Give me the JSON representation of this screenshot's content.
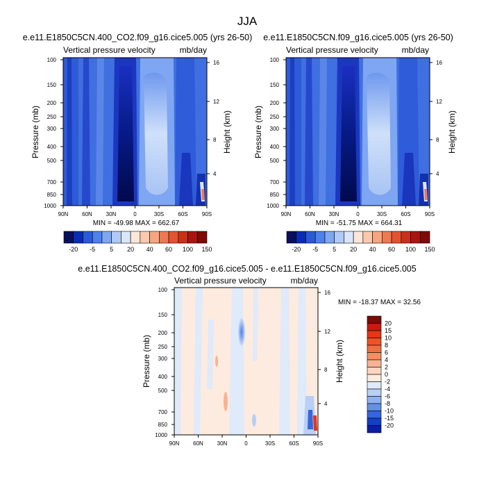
{
  "figure": {
    "title": "JJA"
  },
  "chart_data": [
    {
      "type": "heatmap",
      "title": "e.e11.E1850C5CN.400_CO2.f09_g16.cice5.005 (yrs 26-50)",
      "left_label": "Vertical pressure velocity",
      "right_label": "mb/day",
      "ylabel": "Pressure (mb)",
      "y2label": "Height (km)",
      "xticks": [
        "90N",
        "60N",
        "30N",
        "0",
        "30S",
        "60S",
        "90S"
      ],
      "yticks": [
        "100",
        "150",
        "200",
        "250",
        "300",
        "400",
        "500",
        "700",
        "850",
        "1000"
      ],
      "y2ticks": [
        "16",
        "12",
        "8",
        "4"
      ],
      "stats": "MIN = -49.98   MAX = 662.67",
      "min": -49.98,
      "max": 662.67
    },
    {
      "type": "heatmap",
      "title": "e.e11.E1850C5CN.f09_g16.cice5.005 (yrs 26-50)",
      "left_label": "Vertical pressure velocity",
      "right_label": "mb/day",
      "ylabel": "Pressure (mb)",
      "y2label": "Height (km)",
      "xticks": [
        "90N",
        "60N",
        "30N",
        "0",
        "30S",
        "60S",
        "90S"
      ],
      "yticks": [
        "100",
        "150",
        "200",
        "250",
        "300",
        "400",
        "500",
        "700",
        "850",
        "1000"
      ],
      "y2ticks": [
        "16",
        "12",
        "8",
        "4"
      ],
      "stats": "MIN = -51.75   MAX = 664.31",
      "min": -51.75,
      "max": 664.31
    },
    {
      "type": "heatmap",
      "title": "e.e11.E1850C5CN.400_CO2.f09_g16.cice5.005 - e.e11.E1850C5CN.f09_g16.cice5.005",
      "left_label": "Vertical pressure velocity",
      "right_label": "mb/day",
      "ylabel": "Pressure (mb)",
      "y2label": "Height (km)",
      "xticks": [
        "90N",
        "60N",
        "30N",
        "0",
        "30S",
        "60S",
        "90S"
      ],
      "yticks": [
        "100",
        "150",
        "200",
        "250",
        "300",
        "400",
        "500",
        "700",
        "850",
        "1000"
      ],
      "y2ticks": [
        "16",
        "12",
        "8",
        "4"
      ],
      "stats": "MIN = -18.37   MAX =  32.56",
      "min": -18.37,
      "max": 32.56
    }
  ],
  "colorbar_top": {
    "labels": [
      "-20",
      "-5",
      "5",
      "20",
      "40",
      "60",
      "100",
      "150"
    ],
    "colors": [
      "#08105c",
      "#0a2cb4",
      "#2a5ad8",
      "#4d82ea",
      "#7ea6f2",
      "#b0c9f6",
      "#d9e6fb",
      "#fde7d9",
      "#fbc9ad",
      "#f7a580",
      "#ec7a52",
      "#e2542f",
      "#c9301a",
      "#a81510",
      "#7d0a06"
    ]
  },
  "colorbar_diff": {
    "labels": [
      "20",
      "15",
      "10",
      "8",
      "6",
      "4",
      "2",
      "0",
      "-2",
      "-4",
      "-6",
      "-8",
      "-10",
      "-15",
      "-20"
    ],
    "colors": [
      "#7d0a06",
      "#c91a0e",
      "#ea3416",
      "#ee5326",
      "#f06f40",
      "#f48f63",
      "#f8b293",
      "#fcd6c0",
      "#fdebdf",
      "#dfeafb",
      "#b8cff6",
      "#8fb1f0",
      "#628fe8",
      "#3566dc",
      "#1240c8",
      "#0a20a0"
    ]
  }
}
